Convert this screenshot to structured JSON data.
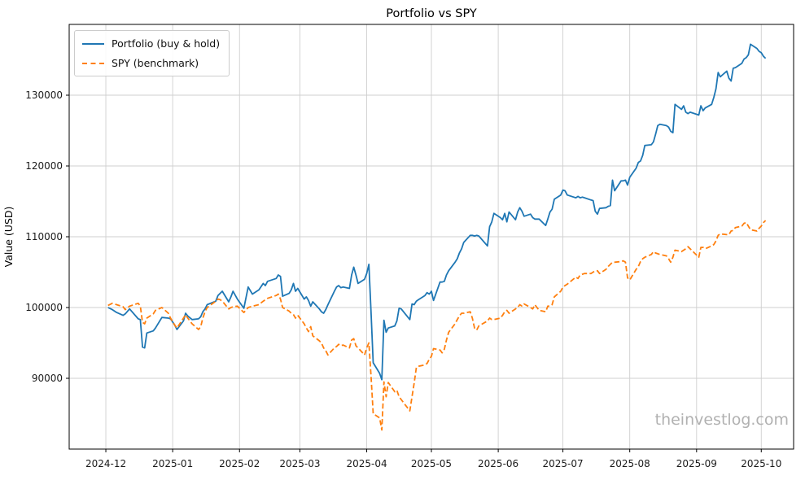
{
  "watermark": "theinvestlog.com",
  "colors": {
    "portfolio": "#1f77b4",
    "spy": "#ff7f0e",
    "grid": "#cfcfcf",
    "spine": "#000000",
    "tick_text": "#1a1a1a",
    "watermark_gray": "#b1b1b1"
  },
  "chart_data": {
    "type": "line",
    "title": "Portfolio vs SPY",
    "xlabel": "",
    "ylabel": "Value (USD)",
    "grid": true,
    "legend_position": "upper left",
    "xlim": [
      "2024-11-14",
      "2025-10-16"
    ],
    "ylim": [
      80000,
      140000
    ],
    "x_ticks": [
      {
        "date": "2024-12-01",
        "label": "2024-12"
      },
      {
        "date": "2025-01-01",
        "label": "2025-01"
      },
      {
        "date": "2025-02-01",
        "label": "2025-02"
      },
      {
        "date": "2025-03-01",
        "label": "2025-03"
      },
      {
        "date": "2025-04-01",
        "label": "2025-04"
      },
      {
        "date": "2025-05-01",
        "label": "2025-05"
      },
      {
        "date": "2025-06-01",
        "label": "2025-06"
      },
      {
        "date": "2025-07-01",
        "label": "2025-07"
      },
      {
        "date": "2025-08-01",
        "label": "2025-08"
      },
      {
        "date": "2025-09-01",
        "label": "2025-09"
      },
      {
        "date": "2025-10-01",
        "label": "2025-10"
      }
    ],
    "y_ticks": [
      {
        "value": 90000,
        "label": "90000"
      },
      {
        "value": 100000,
        "label": "100000"
      },
      {
        "value": 110000,
        "label": "110000"
      },
      {
        "value": 120000,
        "label": "120000"
      },
      {
        "value": 130000,
        "label": "130000"
      }
    ],
    "dates": [
      "2024-12-02",
      "2024-12-04",
      "2024-12-06",
      "2024-12-09",
      "2024-12-10",
      "2024-12-12",
      "2024-12-16",
      "2024-12-17",
      "2024-12-18",
      "2024-12-19",
      "2024-12-20",
      "2024-12-23",
      "2024-12-24",
      "2024-12-27",
      "2024-12-30",
      "2024-12-31",
      "2025-01-02",
      "2025-01-03",
      "2025-01-06",
      "2025-01-07",
      "2025-01-08",
      "2025-01-10",
      "2025-01-13",
      "2025-01-14",
      "2025-01-15",
      "2025-01-16",
      "2025-01-17",
      "2025-01-21",
      "2025-01-22",
      "2025-01-23",
      "2025-01-24",
      "2025-01-27",
      "2025-01-28",
      "2025-01-29",
      "2025-01-31",
      "2025-02-03",
      "2025-02-05",
      "2025-02-07",
      "2025-02-10",
      "2025-02-12",
      "2025-02-13",
      "2025-02-14",
      "2025-02-18",
      "2025-02-19",
      "2025-02-20",
      "2025-02-21",
      "2025-02-24",
      "2025-02-25",
      "2025-02-26",
      "2025-02-27",
      "2025-02-28",
      "2025-03-03",
      "2025-03-04",
      "2025-03-05",
      "2025-03-06",
      "2025-03-07",
      "2025-03-10",
      "2025-03-11",
      "2025-03-12",
      "2025-03-13",
      "2025-03-14",
      "2025-03-17",
      "2025-03-18",
      "2025-03-19",
      "2025-03-20",
      "2025-03-21",
      "2025-03-24",
      "2025-03-25",
      "2025-03-26",
      "2025-03-27",
      "2025-03-28",
      "2025-03-31",
      "2025-04-01",
      "2025-04-02",
      "2025-04-03",
      "2025-04-04",
      "2025-04-07",
      "2025-04-08",
      "2025-04-09",
      "2025-04-10",
      "2025-04-11",
      "2025-04-14",
      "2025-04-15",
      "2025-04-16",
      "2025-04-17",
      "2025-04-21",
      "2025-04-22",
      "2025-04-23",
      "2025-04-24",
      "2025-04-25",
      "2025-04-28",
      "2025-04-29",
      "2025-04-30",
      "2025-05-01",
      "2025-05-02",
      "2025-05-05",
      "2025-05-06",
      "2025-05-07",
      "2025-05-08",
      "2025-05-09",
      "2025-05-12",
      "2025-05-13",
      "2025-05-14",
      "2025-05-15",
      "2025-05-16",
      "2025-05-19",
      "2025-05-20",
      "2025-05-21",
      "2025-05-22",
      "2025-05-23",
      "2025-05-27",
      "2025-05-28",
      "2025-05-29",
      "2025-05-30",
      "2025-06-02",
      "2025-06-03",
      "2025-06-04",
      "2025-06-05",
      "2025-06-06",
      "2025-06-09",
      "2025-06-10",
      "2025-06-11",
      "2025-06-12",
      "2025-06-13",
      "2025-06-16",
      "2025-06-17",
      "2025-06-18",
      "2025-06-20",
      "2025-06-23",
      "2025-06-24",
      "2025-06-25",
      "2025-06-26",
      "2025-06-27",
      "2025-06-30",
      "2025-07-01",
      "2025-07-02",
      "2025-07-03",
      "2025-07-07",
      "2025-07-08",
      "2025-07-09",
      "2025-07-10",
      "2025-07-11",
      "2025-07-14",
      "2025-07-15",
      "2025-07-16",
      "2025-07-17",
      "2025-07-18",
      "2025-07-21",
      "2025-07-22",
      "2025-07-23",
      "2025-07-24",
      "2025-07-25",
      "2025-07-28",
      "2025-07-29",
      "2025-07-30",
      "2025-07-31",
      "2025-08-01",
      "2025-08-04",
      "2025-08-05",
      "2025-08-06",
      "2025-08-07",
      "2025-08-08",
      "2025-08-11",
      "2025-08-12",
      "2025-08-13",
      "2025-08-14",
      "2025-08-15",
      "2025-08-18",
      "2025-08-19",
      "2025-08-20",
      "2025-08-21",
      "2025-08-22",
      "2025-08-25",
      "2025-08-26",
      "2025-08-27",
      "2025-08-28",
      "2025-08-29",
      "2025-09-02",
      "2025-09-03",
      "2025-09-04",
      "2025-09-05",
      "2025-09-08",
      "2025-09-09",
      "2025-09-10",
      "2025-09-11",
      "2025-09-12",
      "2025-09-15",
      "2025-09-16",
      "2025-09-17",
      "2025-09-18",
      "2025-09-19",
      "2025-09-22",
      "2025-09-23",
      "2025-09-24",
      "2025-09-25",
      "2025-09-26",
      "2025-09-29",
      "2025-09-30",
      "2025-10-01",
      "2025-10-02",
      "2025-10-03"
    ],
    "series": [
      {
        "name": "Portfolio (buy & hold)",
        "color": "#1f77b4",
        "style": "solid",
        "values": [
          100000,
          99700,
          99300,
          98900,
          99100,
          99800,
          98400,
          98300,
          94400,
          94300,
          96400,
          96700,
          97100,
          98600,
          98500,
          98400,
          97500,
          96900,
          98100,
          99200,
          98800,
          98300,
          98400,
          98700,
          99400,
          99800,
          100400,
          100900,
          101700,
          102000,
          102300,
          100800,
          101500,
          102300,
          101200,
          99900,
          102900,
          101900,
          102500,
          103400,
          103100,
          103700,
          104100,
          104600,
          104400,
          101600,
          102000,
          102500,
          103400,
          102300,
          102700,
          101200,
          101500,
          101000,
          100200,
          100800,
          99800,
          99400,
          99200,
          99700,
          100400,
          102300,
          102900,
          103100,
          102800,
          102900,
          102700,
          104600,
          105700,
          104600,
          103400,
          104000,
          104800,
          106100,
          99500,
          92200,
          90700,
          89800,
          98200,
          96500,
          97100,
          97400,
          98100,
          99900,
          99800,
          98300,
          100500,
          100400,
          100900,
          101100,
          101700,
          102100,
          101900,
          102300,
          101000,
          103600,
          103600,
          103700,
          104600,
          105200,
          106400,
          106900,
          107700,
          108300,
          109200,
          110200,
          110200,
          110100,
          110200,
          110100,
          108700,
          111400,
          112100,
          113300,
          112700,
          112400,
          113300,
          112100,
          113500,
          112400,
          113500,
          114100,
          113600,
          112900,
          113200,
          112700,
          112500,
          112500,
          111600,
          112500,
          113500,
          113900,
          115300,
          115900,
          116600,
          116500,
          115900,
          115500,
          115700,
          115500,
          115600,
          115500,
          115200,
          115100,
          113600,
          113200,
          114000,
          114100,
          114300,
          114400,
          118000,
          116500,
          117900,
          117900,
          118000,
          117300,
          118400,
          119700,
          120500,
          120700,
          121500,
          122900,
          123000,
          123400,
          124500,
          125700,
          125900,
          125700,
          125500,
          124900,
          124700,
          128700,
          128000,
          128500,
          127600,
          127400,
          127600,
          127200,
          128500,
          127800,
          128200,
          128700,
          129700,
          130900,
          133200,
          132600,
          133400,
          132400,
          132000,
          133800,
          133900,
          134500,
          135100,
          135300,
          135700,
          137200,
          136600,
          136200,
          136000,
          135500,
          135200
        ]
      },
      {
        "name": "SPY (benchmark)",
        "color": "#ff7f0e",
        "style": "dashed",
        "values": [
          100300,
          100600,
          100400,
          100100,
          99700,
          100200,
          100600,
          100200,
          97900,
          97700,
          98500,
          99100,
          99600,
          100000,
          99200,
          98500,
          97500,
          97100,
          98500,
          99000,
          98500,
          97700,
          96900,
          97300,
          98500,
          99400,
          100000,
          100900,
          101200,
          101100,
          100900,
          99800,
          100000,
          100100,
          100200,
          99300,
          100000,
          100200,
          100400,
          100900,
          101100,
          101300,
          101700,
          101900,
          101200,
          100000,
          99500,
          99200,
          99000,
          98500,
          98900,
          97700,
          97100,
          96600,
          97300,
          96000,
          95300,
          95000,
          94300,
          93900,
          93300,
          94300,
          94500,
          94800,
          94600,
          94700,
          94300,
          95400,
          95600,
          94600,
          94300,
          93300,
          94300,
          95000,
          90400,
          85000,
          84400,
          82700,
          89500,
          87400,
          89400,
          88100,
          88300,
          87400,
          87000,
          85400,
          87400,
          89300,
          91500,
          91700,
          91900,
          92100,
          92700,
          93100,
          94200,
          94000,
          93600,
          94100,
          95400,
          96500,
          97700,
          98300,
          98800,
          99200,
          99200,
          99400,
          98500,
          97100,
          96800,
          97400,
          98100,
          98500,
          98300,
          98300,
          98500,
          98900,
          99400,
          99600,
          99200,
          99800,
          100000,
          100400,
          100200,
          100500,
          100000,
          99800,
          100400,
          99600,
          99400,
          100200,
          100200,
          100400,
          101500,
          102300,
          102900,
          103100,
          103300,
          104300,
          104100,
          104600,
          104700,
          104800,
          104800,
          105000,
          105200,
          105200,
          104800,
          105400,
          105800,
          106100,
          106400,
          106400,
          106500,
          106600,
          106400,
          104200,
          103900,
          105400,
          105800,
          106500,
          106900,
          107100,
          107500,
          107900,
          107700,
          107600,
          107500,
          107300,
          106900,
          106400,
          107100,
          108100,
          107900,
          108100,
          108300,
          108600,
          108300,
          107100,
          108500,
          108500,
          108300,
          108700,
          108900,
          109400,
          110200,
          110400,
          110300,
          110300,
          110800,
          110900,
          111300,
          111500,
          111900,
          112000,
          111500,
          111000,
          110800,
          111200,
          111500,
          112000,
          112300
        ]
      }
    ]
  }
}
